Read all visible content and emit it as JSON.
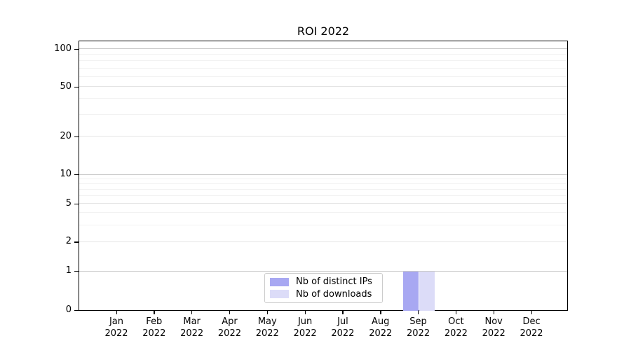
{
  "chart_data": {
    "type": "bar",
    "title": "ROI 2022",
    "categories": [
      "Jan",
      "Feb",
      "Mar",
      "Apr",
      "May",
      "Jun",
      "Jul",
      "Aug",
      "Sep",
      "Oct",
      "Nov",
      "Dec"
    ],
    "category_year": "2022",
    "series": [
      {
        "name": "Nb of distinct IPs",
        "color": "#a8a8f2",
        "values": [
          0,
          0,
          0,
          0,
          0,
          0,
          0,
          0,
          1,
          0,
          0,
          0
        ]
      },
      {
        "name": "Nb of downloads",
        "color": "#dcdcf8",
        "values": [
          0,
          0,
          0,
          0,
          0,
          0,
          0,
          0,
          1,
          0,
          0,
          0
        ]
      }
    ],
    "y_axis": {
      "scale": "symlog",
      "tick_values": [
        0,
        1,
        2,
        5,
        10,
        20,
        50,
        100
      ],
      "decade_values": [
        1,
        10,
        100
      ],
      "minor_gridline_values": [
        3,
        4,
        6,
        7,
        8,
        9,
        30,
        40,
        60,
        70,
        80,
        90
      ]
    },
    "legend": {
      "position": "lower center"
    },
    "grid": true,
    "colors": {
      "axis": "#000000",
      "decade_grid": "#c9c9c9",
      "labeled_grid": "#e4e4e4",
      "minor_grid": "#f2f2f2",
      "legend_border": "#cccccc",
      "background": "#ffffff",
      "text": "#000000"
    }
  }
}
